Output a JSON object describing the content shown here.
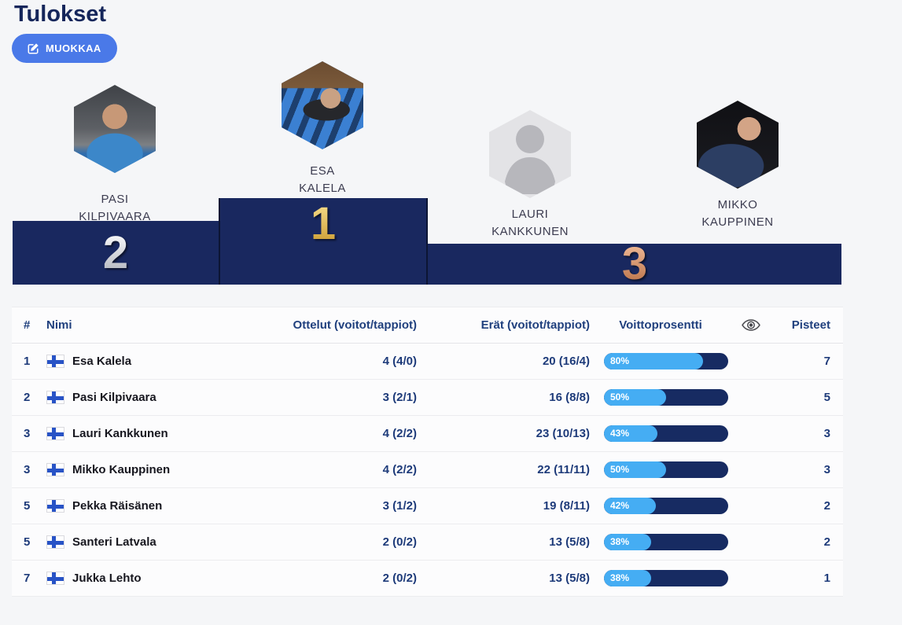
{
  "page": {
    "title": "Tulokset"
  },
  "toolbar": {
    "edit_label": "MUOKKAA"
  },
  "colors": {
    "accent_blue": "#4a79e8",
    "podium_navy": "#19285f",
    "bar_fill_blue": "#45adf3",
    "bar_track_navy": "#172b62",
    "text_navy": "#1e3b7a",
    "gold": "#d9ab3c",
    "silver": "#c9ccd2",
    "bronze": "#cf8a5c"
  },
  "icons": {
    "edit": "pencil-square-icon",
    "eye": "eye-icon",
    "flag": "finland-flag-icon"
  },
  "podium": {
    "first": {
      "rank": "1",
      "name_line1": "ESA",
      "name_line2": "KALELA",
      "avatar": "photo"
    },
    "second": {
      "rank": "2",
      "name_line1": "PASI",
      "name_line2": "KILPIVAARA",
      "avatar": "photo"
    },
    "third_a": {
      "rank": "3",
      "name_line1": "LAURI",
      "name_line2": "KANKKUNEN",
      "avatar": "placeholder-silhouette"
    },
    "third_b": {
      "name_line1": "MIKKO",
      "name_line2": "KAUPPINEN",
      "avatar": "photo"
    }
  },
  "table": {
    "headers": {
      "rank": "#",
      "name": "Nimi",
      "matches": "Ottelut (voitot/tappiot)",
      "frames": "Erät (voitot/tappiot)",
      "win_pct": "Voittoprosentti",
      "points": "Pisteet"
    },
    "rows": [
      {
        "rank": "1",
        "name": "Esa Kalela",
        "matches": "4 (4/0)",
        "frames": "20 (16/4)",
        "win_pct": "80%",
        "win_pct_value": 80,
        "points": "7"
      },
      {
        "rank": "2",
        "name": "Pasi Kilpivaara",
        "matches": "3 (2/1)",
        "frames": "16 (8/8)",
        "win_pct": "50%",
        "win_pct_value": 50,
        "points": "5"
      },
      {
        "rank": "3",
        "name": "Lauri Kankkunen",
        "matches": "4 (2/2)",
        "frames": "23 (10/13)",
        "win_pct": "43%",
        "win_pct_value": 43,
        "points": "3"
      },
      {
        "rank": "3",
        "name": "Mikko Kauppinen",
        "matches": "4 (2/2)",
        "frames": "22 (11/11)",
        "win_pct": "50%",
        "win_pct_value": 50,
        "points": "3"
      },
      {
        "rank": "5",
        "name": "Pekka Räisänen",
        "matches": "3 (1/2)",
        "frames": "19 (8/11)",
        "win_pct": "42%",
        "win_pct_value": 42,
        "points": "2"
      },
      {
        "rank": "5",
        "name": "Santeri Latvala",
        "matches": "2 (0/2)",
        "frames": "13 (5/8)",
        "win_pct": "38%",
        "win_pct_value": 38,
        "points": "2"
      },
      {
        "rank": "7",
        "name": "Jukka Lehto",
        "matches": "2 (0/2)",
        "frames": "13 (5/8)",
        "win_pct": "38%",
        "win_pct_value": 38,
        "points": "1"
      }
    ]
  }
}
